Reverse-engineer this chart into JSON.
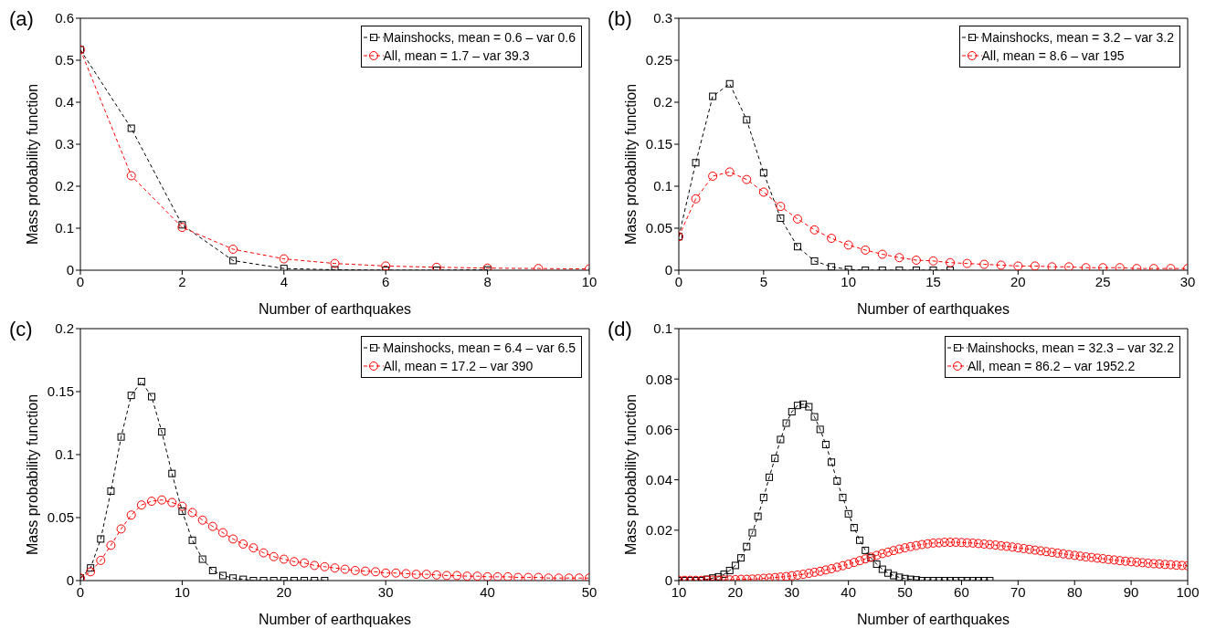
{
  "chart_data": [
    {
      "type": "line",
      "title": "(a)",
      "xlabel": "Number of earthquakes",
      "ylabel": "Mass probability function",
      "xlim": [
        0,
        10
      ],
      "xticks": [
        0,
        2,
        4,
        6,
        8,
        10
      ],
      "ylim": [
        0,
        0.6
      ],
      "yticks": [
        0,
        0.1,
        0.2,
        0.3,
        0.4,
        0.5,
        0.6
      ],
      "legend": "top right",
      "line_style": "dashed",
      "series": [
        {
          "name": "Mainshocks, mean = 0.6 – var 0.6",
          "color": "#000000",
          "marker": "square",
          "x": [
            0,
            1,
            2,
            3,
            4,
            5,
            6,
            7,
            8
          ],
          "values": [
            0.525,
            0.338,
            0.108,
            0.023,
            0.004,
            0.001,
            0,
            0,
            0.001
          ]
        },
        {
          "name": "All, mean = 1.7 – var 39.3",
          "color": "#ff0000",
          "marker": "circle",
          "x": [
            0,
            1,
            2,
            3,
            4,
            5,
            6,
            7,
            8,
            9,
            10
          ],
          "values": [
            0.525,
            0.225,
            0.102,
            0.05,
            0.027,
            0.016,
            0.01,
            0.007,
            0.005,
            0.004,
            0.003
          ]
        }
      ]
    },
    {
      "type": "line",
      "title": "(b)",
      "xlabel": "Number of earthquakes",
      "ylabel": "Mass probability function",
      "xlim": [
        0,
        30
      ],
      "xticks": [
        0,
        5,
        10,
        15,
        20,
        25,
        30
      ],
      "ylim": [
        0,
        0.3
      ],
      "yticks": [
        0,
        0.05,
        0.1,
        0.15,
        0.2,
        0.25,
        0.3
      ],
      "legend": "top right",
      "line_style": "dashed",
      "series": [
        {
          "name": "Mainshocks, mean = 3.2 – var 3.2",
          "color": "#000000",
          "marker": "square",
          "x": [
            0,
            1,
            2,
            3,
            4,
            5,
            6,
            7,
            8,
            9,
            10,
            11,
            12,
            13,
            14,
            15,
            16
          ],
          "values": [
            0.04,
            0.128,
            0.207,
            0.222,
            0.179,
            0.116,
            0.062,
            0.028,
            0.011,
            0.004,
            0.001,
            0,
            0,
            0,
            0,
            0,
            0
          ]
        },
        {
          "name": "All, mean = 8.6 – var 195",
          "color": "#ff0000",
          "marker": "circle",
          "x": [
            0,
            1,
            2,
            3,
            4,
            5,
            6,
            7,
            8,
            9,
            10,
            11,
            12,
            13,
            14,
            15,
            16,
            17,
            18,
            19,
            20,
            21,
            22,
            23,
            24,
            25,
            26,
            27,
            28,
            29,
            30
          ],
          "values": [
            0.04,
            0.085,
            0.112,
            0.117,
            0.108,
            0.093,
            0.076,
            0.061,
            0.048,
            0.038,
            0.03,
            0.024,
            0.019,
            0.015,
            0.012,
            0.011,
            0.009,
            0.008,
            0.007,
            0.006,
            0.005,
            0.005,
            0.004,
            0.004,
            0.003,
            0.003,
            0.003,
            0.002,
            0.002,
            0.002,
            0.002
          ]
        }
      ]
    },
    {
      "type": "line",
      "title": "(c)",
      "xlabel": "Number of earthquakes",
      "ylabel": "Mass probability function",
      "xlim": [
        0,
        50
      ],
      "xticks": [
        0,
        10,
        20,
        30,
        40,
        50
      ],
      "ylim": [
        0,
        0.2
      ],
      "yticks": [
        0,
        0.05,
        0.1,
        0.15,
        0.2
      ],
      "legend": "top right",
      "line_style": "dashed",
      "series": [
        {
          "name": "Mainshocks, mean = 6.4 – var 6.5",
          "color": "#000000",
          "marker": "square",
          "x": [
            0,
            1,
            2,
            3,
            4,
            5,
            6,
            7,
            8,
            9,
            10,
            11,
            12,
            13,
            14,
            15,
            16,
            17,
            18,
            19,
            20,
            21,
            22,
            23,
            24
          ],
          "values": [
            0.002,
            0.01,
            0.033,
            0.071,
            0.114,
            0.147,
            0.158,
            0.146,
            0.118,
            0.085,
            0.055,
            0.032,
            0.017,
            0.008,
            0.004,
            0.002,
            0.001,
            0,
            0,
            0,
            0,
            0,
            0,
            0,
            0
          ]
        },
        {
          "name": "All, mean = 17.2 – var 390",
          "color": "#ff0000",
          "marker": "circle",
          "x": [
            0,
            1,
            2,
            3,
            4,
            5,
            6,
            7,
            8,
            9,
            10,
            11,
            12,
            13,
            14,
            15,
            16,
            17,
            18,
            19,
            20,
            21,
            22,
            23,
            24,
            25,
            26,
            27,
            28,
            29,
            30,
            31,
            32,
            33,
            34,
            35,
            36,
            37,
            38,
            39,
            40,
            41,
            42,
            43,
            44,
            45,
            46,
            47,
            48,
            49,
            50
          ],
          "values": [
            0.002,
            0.007,
            0.016,
            0.028,
            0.041,
            0.052,
            0.06,
            0.063,
            0.064,
            0.062,
            0.059,
            0.054,
            0.048,
            0.043,
            0.038,
            0.033,
            0.029,
            0.026,
            0.022,
            0.019,
            0.017,
            0.015,
            0.014,
            0.012,
            0.011,
            0.01,
            0.009,
            0.008,
            0.0075,
            0.007,
            0.006,
            0.006,
            0.0055,
            0.005,
            0.005,
            0.0045,
            0.004,
            0.004,
            0.0035,
            0.0035,
            0.003,
            0.003,
            0.003,
            0.0025,
            0.0025,
            0.0025,
            0.002,
            0.002,
            0.002,
            0.002,
            0.002
          ]
        }
      ]
    },
    {
      "type": "line",
      "title": "(d)",
      "xlabel": "Number of earthquakes",
      "ylabel": "Mass probability function",
      "xlim": [
        10,
        100
      ],
      "xticks": [
        10,
        20,
        30,
        40,
        50,
        60,
        70,
        80,
        90,
        100
      ],
      "ylim": [
        0,
        0.1
      ],
      "yticks": [
        0,
        0.02,
        0.04,
        0.06,
        0.08,
        0.1
      ],
      "legend": "top right",
      "line_style": "dashed",
      "series": [
        {
          "name": "Mainshocks, mean = 32.3 – var 32.2",
          "color": "#000000",
          "marker": "square",
          "x": [
            10,
            11,
            12,
            13,
            14,
            15,
            16,
            17,
            18,
            19,
            20,
            21,
            22,
            23,
            24,
            25,
            26,
            27,
            28,
            29,
            30,
            31,
            32,
            33,
            34,
            35,
            36,
            37,
            38,
            39,
            40,
            41,
            42,
            43,
            44,
            45,
            46,
            47,
            48,
            49,
            50,
            51,
            52,
            53,
            54,
            55,
            56,
            57,
            58,
            59,
            60,
            61,
            62,
            63,
            64,
            65
          ],
          "values": [
            0,
            0,
            0,
            0,
            0,
            0.0005,
            0.001,
            0.0015,
            0.0025,
            0.004,
            0.006,
            0.009,
            0.0135,
            0.019,
            0.0255,
            0.033,
            0.041,
            0.0485,
            0.056,
            0.0625,
            0.067,
            0.0695,
            0.07,
            0.069,
            0.065,
            0.06,
            0.054,
            0.047,
            0.0395,
            0.033,
            0.0265,
            0.021,
            0.016,
            0.012,
            0.009,
            0.0065,
            0.0045,
            0.003,
            0.002,
            0.0013,
            0.0008,
            0.0005,
            0.0003,
            0,
            0,
            0,
            0,
            0,
            0,
            0,
            0,
            0,
            0,
            0,
            0,
            0
          ]
        },
        {
          "name": "All, mean = 86.2 – var 1952.2",
          "color": "#ff0000",
          "marker": "circle",
          "x": [
            10,
            11,
            12,
            13,
            14,
            15,
            16,
            17,
            18,
            19,
            20,
            21,
            22,
            23,
            24,
            25,
            26,
            27,
            28,
            29,
            30,
            31,
            32,
            33,
            34,
            35,
            36,
            37,
            38,
            39,
            40,
            41,
            42,
            43,
            44,
            45,
            46,
            47,
            48,
            49,
            50,
            51,
            52,
            53,
            54,
            55,
            56,
            57,
            58,
            59,
            60,
            61,
            62,
            63,
            64,
            65,
            66,
            67,
            68,
            69,
            70,
            71,
            72,
            73,
            74,
            75,
            76,
            77,
            78,
            79,
            80,
            81,
            82,
            83,
            84,
            85,
            86,
            87,
            88,
            89,
            90,
            91,
            92,
            93,
            94,
            95,
            96,
            97,
            98,
            99,
            100
          ],
          "values": [
            0.0001,
            0.0001,
            0.0001,
            0.0001,
            0.0001,
            0.0002,
            0.0002,
            0.0002,
            0.0003,
            0.0003,
            0.0004,
            0.0005,
            0.0005,
            0.0006,
            0.0007,
            0.0009,
            0.001,
            0.0012,
            0.0014,
            0.0016,
            0.0019,
            0.0022,
            0.0025,
            0.0029,
            0.0033,
            0.0037,
            0.0042,
            0.0047,
            0.0053,
            0.0059,
            0.0065,
            0.0072,
            0.0079,
            0.0086,
            0.0093,
            0.01,
            0.0107,
            0.0113,
            0.0119,
            0.0125,
            0.013,
            0.0135,
            0.0139,
            0.0143,
            0.0146,
            0.0149,
            0.015,
            0.0152,
            0.0152,
            0.0152,
            0.0151,
            0.015,
            0.0149,
            0.0147,
            0.0145,
            0.0143,
            0.0141,
            0.0138,
            0.0136,
            0.0133,
            0.013,
            0.0127,
            0.0124,
            0.0121,
            0.0118,
            0.0115,
            0.0112,
            0.0109,
            0.0106,
            0.0103,
            0.01,
            0.0097,
            0.0094,
            0.0092,
            0.0089,
            0.0087,
            0.0084,
            0.0082,
            0.0079,
            0.0077,
            0.0075,
            0.0073,
            0.0071,
            0.0069,
            0.0067,
            0.0066,
            0.0064,
            0.0063,
            0.0061,
            0.006,
            0.0059
          ]
        }
      ]
    }
  ]
}
